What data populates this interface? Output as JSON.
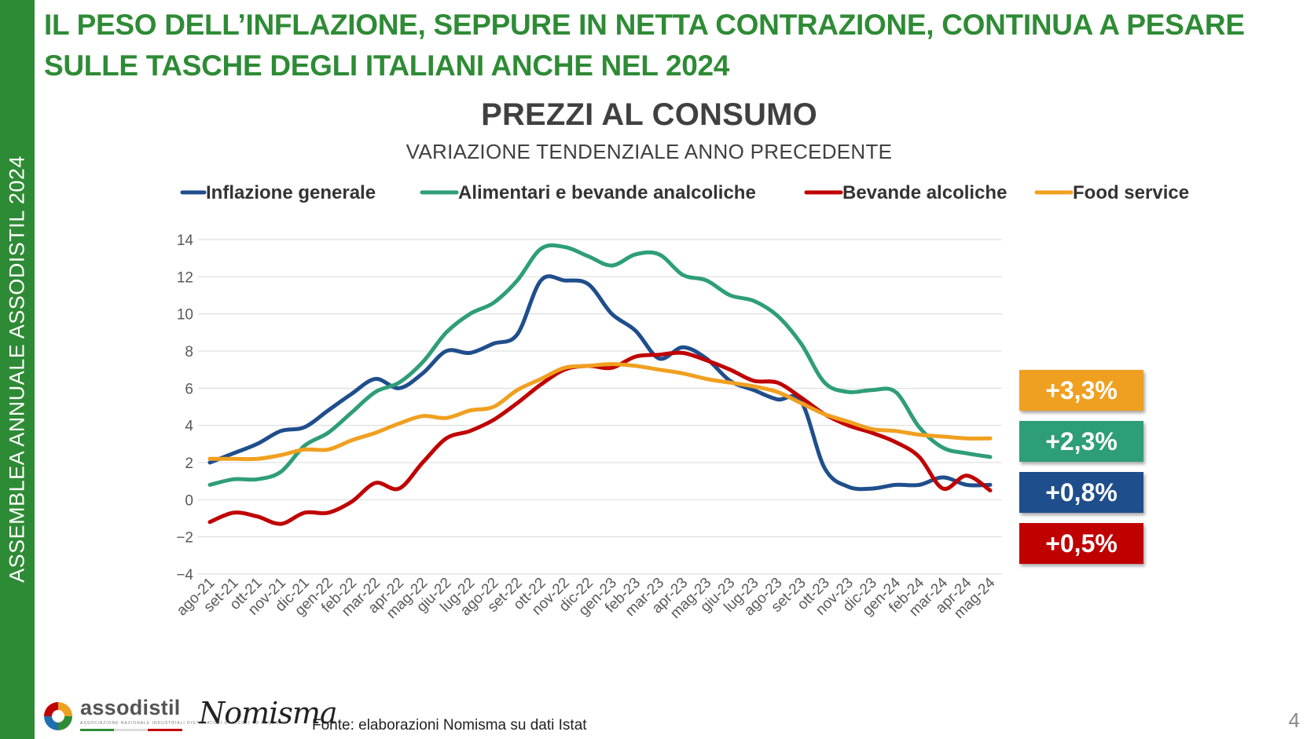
{
  "sidebar": {
    "label": "ASSEMBLEA ANNUALE ASSODISTIL 2024"
  },
  "headline": {
    "line1": "IL PESO DELL’INFLAZIONE, SEPPURE IN NETTA CONTRAZIONE, CONTINUA A PESARE",
    "line2": "SULLE TASCHE DEGLI ITALIANI ANCHE NEL 2024"
  },
  "chart_data": {
    "type": "line",
    "title": "PREZZI AL CONSUMO",
    "subtitle": "VARIAZIONE TENDENZIALE ANNO PRECEDENTE",
    "xlabel": "",
    "ylabel": "",
    "ylim": [
      -4,
      14
    ],
    "yticks": [
      -4,
      -2,
      0,
      2,
      4,
      6,
      8,
      10,
      12,
      14
    ],
    "grid": true,
    "legend_position": "top",
    "categories": [
      "ago-21",
      "set-21",
      "ott-21",
      "nov-21",
      "dic-21",
      "gen-22",
      "feb-22",
      "mar-22",
      "apr-22",
      "mag-22",
      "giu-22",
      "lug-22",
      "ago-22",
      "set-22",
      "ott-22",
      "nov-22",
      "dic-22",
      "gen-23",
      "feb-23",
      "mar-23",
      "apr-23",
      "mag-23",
      "giu-23",
      "lug-23",
      "ago-23",
      "set-23",
      "ott-23",
      "nov-23",
      "dic-23",
      "gen-24",
      "feb-24",
      "mar-24",
      "apr-24",
      "mag-24"
    ],
    "series": [
      {
        "name": "Inflazione generale",
        "color": "#1f4e8c",
        "values": [
          2.0,
          2.5,
          3.0,
          3.7,
          3.9,
          4.8,
          5.7,
          6.5,
          6.0,
          6.8,
          8.0,
          7.9,
          8.4,
          8.9,
          11.8,
          11.8,
          11.6,
          10.0,
          9.1,
          7.6,
          8.2,
          7.6,
          6.4,
          5.9,
          5.4,
          5.3,
          1.7,
          0.7,
          0.6,
          0.8,
          0.8,
          1.2,
          0.8,
          0.8
        ]
      },
      {
        "name": "Alimentari e bevande analcoliche",
        "color": "#2e9e78",
        "values": [
          0.8,
          1.1,
          1.1,
          1.5,
          2.9,
          3.6,
          4.7,
          5.8,
          6.3,
          7.4,
          9.0,
          10.0,
          10.6,
          11.8,
          13.5,
          13.6,
          13.1,
          12.6,
          13.2,
          13.2,
          12.1,
          11.8,
          11.0,
          10.7,
          9.9,
          8.4,
          6.3,
          5.8,
          5.9,
          5.8,
          3.9,
          2.8,
          2.5,
          2.3
        ]
      },
      {
        "name": "Bevande alcoliche",
        "color": "#c00000",
        "values": [
          -1.2,
          -0.7,
          -0.9,
          -1.3,
          -0.7,
          -0.7,
          -0.1,
          0.9,
          0.6,
          2.0,
          3.3,
          3.7,
          4.3,
          5.2,
          6.2,
          7.0,
          7.2,
          7.1,
          7.7,
          7.8,
          7.9,
          7.5,
          7.0,
          6.4,
          6.3,
          5.5,
          4.6,
          4.0,
          3.6,
          3.1,
          2.3,
          0.6,
          1.3,
          0.5
        ]
      },
      {
        "name": "Food service",
        "color": "#f0a020",
        "values": [
          2.2,
          2.2,
          2.2,
          2.4,
          2.7,
          2.7,
          3.2,
          3.6,
          4.1,
          4.5,
          4.4,
          4.8,
          5.0,
          5.9,
          6.5,
          7.1,
          7.2,
          7.3,
          7.2,
          7.0,
          6.8,
          6.5,
          6.3,
          6.1,
          5.8,
          5.2,
          4.6,
          4.2,
          3.8,
          3.7,
          3.5,
          3.4,
          3.3,
          3.3
        ]
      }
    ],
    "end_labels": [
      {
        "text": "+3,3%",
        "color": "#f0a020"
      },
      {
        "text": "+2,3%",
        "color": "#2e9e78"
      },
      {
        "text": "+0,8%",
        "color": "#1f4e8c"
      },
      {
        "text": "+0,5%",
        "color": "#c00000"
      }
    ]
  },
  "footer": {
    "source": "Fonte: elaborazioni Nomisma su dati Istat",
    "page_number": "4",
    "logo_text": "assodistil",
    "logo_subtitle": "ASSOCIAZIONE NAZIONALE INDUSTRIALI DISTILLATORI DI ALCOLI ED ACQUAVITI",
    "partner_logo": "Nomisma"
  }
}
